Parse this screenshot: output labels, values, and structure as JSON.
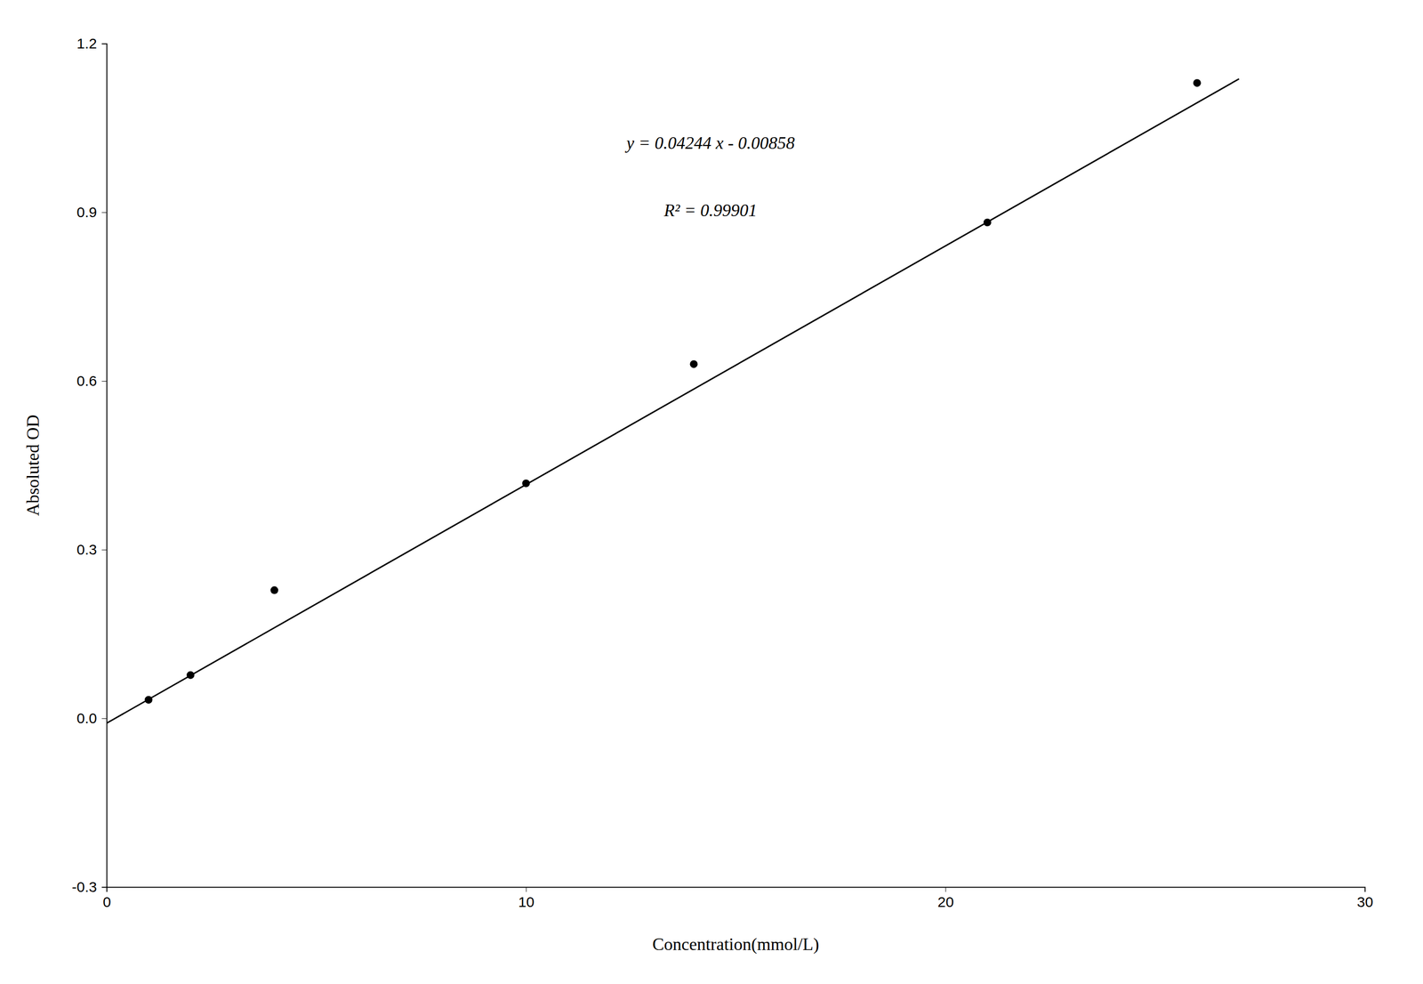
{
  "chart_data": {
    "type": "scatter",
    "x_label": "Concentration(mmol/L)",
    "y_label": "Absoluted OD",
    "annotations": [
      "y = 0.04244 x - 0.00858",
      "R² = 0.99901"
    ],
    "xlim": [
      0,
      30
    ],
    "ylim": [
      -0.3,
      1.2
    ],
    "xticks": [
      0,
      10,
      20,
      30
    ],
    "yticks": [
      -0.3,
      {
        "value": 0.0,
        "label": "0.0"
      },
      0.3,
      0.6,
      0.9,
      1.2
    ],
    "grid": false,
    "series": [
      {
        "type": "line",
        "color": "#000000",
        "line_style": "solid",
        "x": [
          0,
          27
        ],
        "values": [
          -0.00858,
          1.1373
        ]
      },
      {
        "type": "scatter",
        "color": "#000000",
        "marker": "circle",
        "x": [
          1,
          2,
          4,
          10,
          14,
          21,
          26
        ],
        "values": [
          0.033,
          0.077,
          0.228,
          0.418,
          0.63,
          0.882,
          1.13
        ]
      }
    ]
  }
}
